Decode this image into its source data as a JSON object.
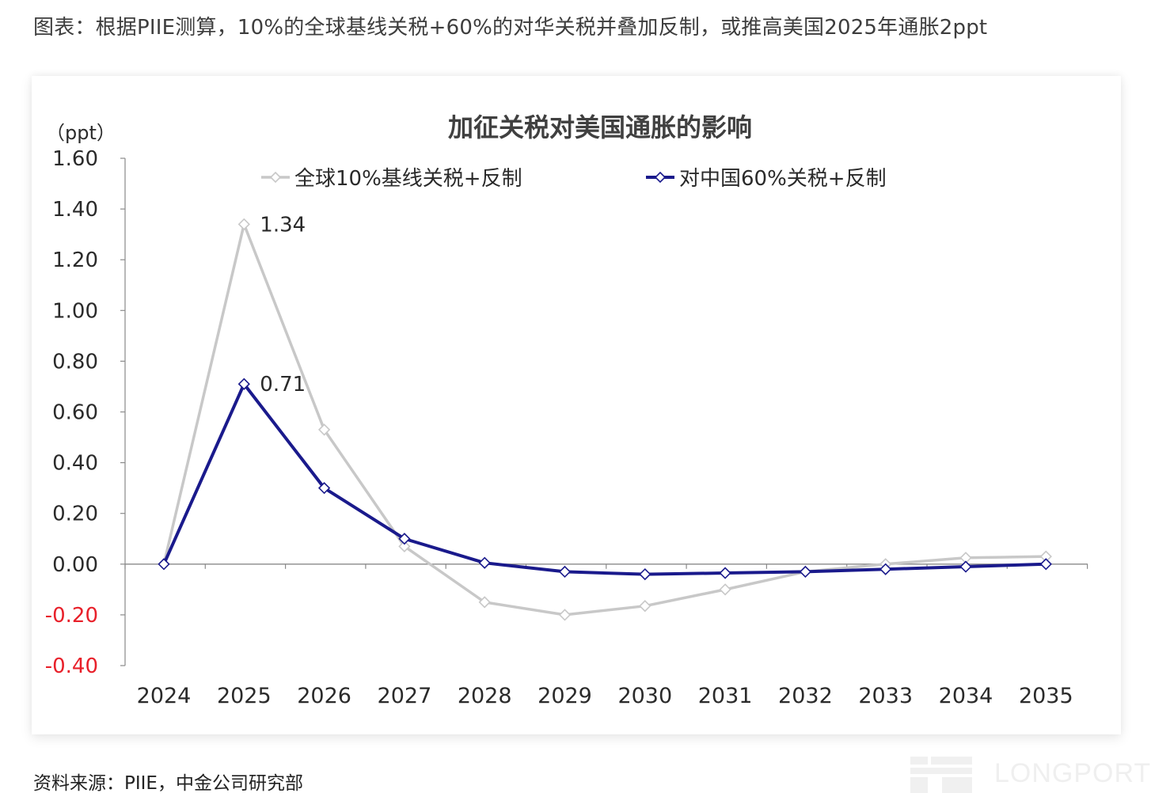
{
  "caption": "图表：根据PIIE测算，10%的全球基线关税+60%的对华关税并叠加反制，或推高美国2025年通胀2ppt",
  "source": "资料来源：PIIE，中金公司研究部",
  "watermark": "LONGPORT",
  "colors": {
    "series1": "#c8c8c8",
    "series2": "#1a1a8c",
    "negative_tick": "#e8202a",
    "axis": "#8a8a8a"
  },
  "chart_data": {
    "type": "line",
    "title": "加征关税对美国通胀的影响",
    "ylabel": "（ppt）",
    "xlabel": "",
    "ylim": [
      -0.4,
      1.6
    ],
    "yticks": [
      "1.60",
      "1.40",
      "1.20",
      "1.00",
      "0.80",
      "0.60",
      "0.40",
      "0.20",
      "0.00",
      "-0.20",
      "-0.40"
    ],
    "x": [
      "2024",
      "2025",
      "2026",
      "2027",
      "2028",
      "2029",
      "2030",
      "2031",
      "2032",
      "2033",
      "2034",
      "2035"
    ],
    "legend_position": "top",
    "series": [
      {
        "name": "全球10%基线关税+反制",
        "values": [
          0.0,
          1.34,
          0.53,
          0.07,
          -0.15,
          -0.2,
          -0.165,
          -0.1,
          -0.03,
          0.0,
          0.025,
          0.03
        ]
      },
      {
        "name": "对中国60%关税+反制",
        "values": [
          0.0,
          0.71,
          0.3,
          0.1,
          0.005,
          -0.03,
          -0.04,
          -0.035,
          -0.03,
          -0.02,
          -0.01,
          0.0
        ]
      }
    ],
    "annotations": [
      {
        "text": "1.34",
        "series": 0,
        "index": 1
      },
      {
        "text": "0.71",
        "series": 1,
        "index": 1
      }
    ]
  }
}
